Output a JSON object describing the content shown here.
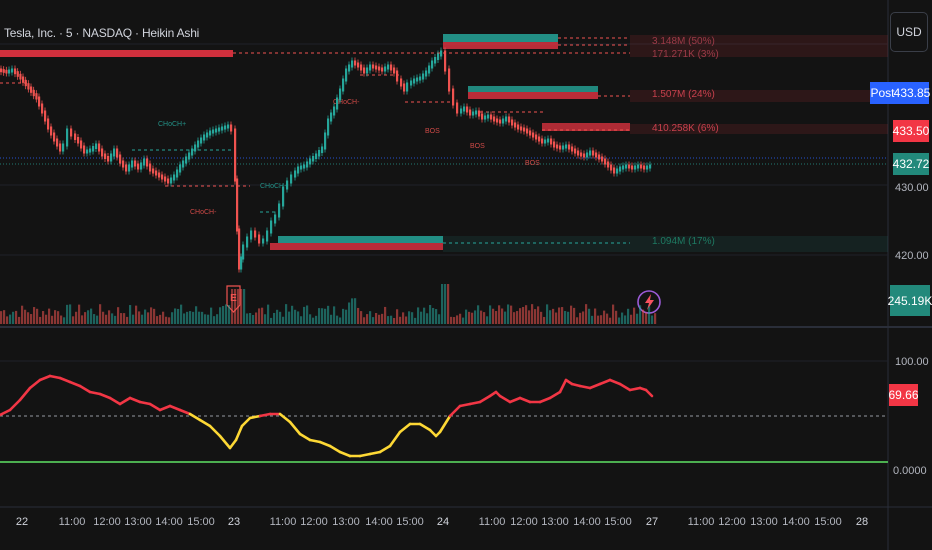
{
  "header": {
    "title": "Tesla, Inc. · 5 · NASDAQ · Heikin Ashi",
    "currency_button": "USD"
  },
  "price_axis": {
    "ticks": [
      "430.00",
      "420.00"
    ],
    "indicator_ticks": [
      "100.00",
      "0.0000"
    ]
  },
  "badges": {
    "post_label": "Post",
    "post_price": "433.85",
    "red_price": "433.50",
    "green_price": "432.72",
    "volume": "245.19K",
    "indicator": "69.66"
  },
  "zone_labels": [
    {
      "text": "3.148M (50%)",
      "color": "#9c3b48"
    },
    {
      "text": "171.271K (3%)",
      "color": "#9c3b48"
    },
    {
      "text": "1.507M (24%)",
      "color": "#c8414d"
    },
    {
      "text": "410.258K (6%)",
      "color": "#c8414d"
    },
    {
      "text": "1.094M (17%)",
      "color": "#1e7a62"
    }
  ],
  "chart_annotations": [
    "CHoCH+",
    "CHoCH-",
    "CHoCH-",
    "CHoCH+",
    "BOS",
    "BOS",
    "BOS"
  ],
  "earnings_marker": "E",
  "time_axis": {
    "labels": [
      {
        "text": "22",
        "day": true
      },
      {
        "text": "11:00",
        "day": false
      },
      {
        "text": "12:00",
        "day": false
      },
      {
        "text": "13:00",
        "day": false
      },
      {
        "text": "14:00",
        "day": false
      },
      {
        "text": "15:00",
        "day": false
      },
      {
        "text": "23",
        "day": true
      },
      {
        "text": "11:00",
        "day": false
      },
      {
        "text": "12:00",
        "day": false
      },
      {
        "text": "13:00",
        "day": false
      },
      {
        "text": "14:00",
        "day": false
      },
      {
        "text": "15:00",
        "day": false
      },
      {
        "text": "24",
        "day": true
      },
      {
        "text": "11:00",
        "day": false
      },
      {
        "text": "12:00",
        "day": false
      },
      {
        "text": "13:00",
        "day": false
      },
      {
        "text": "14:00",
        "day": false
      },
      {
        "text": "15:00",
        "day": false
      },
      {
        "text": "27",
        "day": true
      },
      {
        "text": "11:00",
        "day": false
      },
      {
        "text": "12:00",
        "day": false
      },
      {
        "text": "13:00",
        "day": false
      },
      {
        "text": "14:00",
        "day": false
      },
      {
        "text": "15:00",
        "day": false
      },
      {
        "text": "28",
        "day": true
      }
    ]
  },
  "colors": {
    "up": "#26a69a",
    "down": "#ef5350",
    "indicator_high": "#f23645",
    "indicator_low": "#fdd835",
    "baseline": "#4caf50",
    "post_badge": "#2962ff"
  }
}
